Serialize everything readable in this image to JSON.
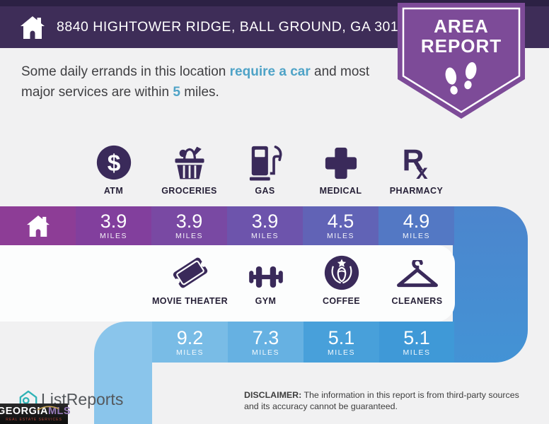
{
  "colors": {
    "header_bg": "#3e2d58",
    "header_top_strip": "#2c2144",
    "badge_purple": "#7d4b98",
    "highlight_blue": "#4fa3c7",
    "icon_purple": "#3a2a5a",
    "page_bg": "#f1f1f2",
    "panel_bg": "#fcfdfd",
    "band1_cells": [
      "#8d3d96",
      "#823f9d",
      "#7949a3",
      "#6d54ac",
      "#6163b6",
      "#5378c4"
    ],
    "connector_right_top": "#4c85cd",
    "connector_right_bottom": "#4393d5",
    "band2_cells": [
      "#8cc7ec",
      "#79bce6",
      "#66b1e2",
      "#48a0da",
      "#3f99d7"
    ],
    "connector_left": "#8ac5eb"
  },
  "header": {
    "address": "8840 HIGHTOWER RIDGE, BALL GROUND, GA 30107"
  },
  "badge": {
    "line1": "AREA",
    "line2": "REPORT"
  },
  "subtitle": {
    "segments": [
      {
        "text": "Some daily errands in this location ",
        "highlight": false
      },
      {
        "text": "require a car",
        "highlight": true
      },
      {
        "text": " and most major services are within ",
        "highlight": false
      },
      {
        "text": "5",
        "highlight": true
      },
      {
        "text": " miles.",
        "highlight": false
      }
    ]
  },
  "row1": {
    "items": [
      {
        "label": "ATM",
        "icon": "atm-dollar-icon",
        "distance": "3.9",
        "unit": "MILES"
      },
      {
        "label": "GROCERIES",
        "icon": "groceries-basket-icon",
        "distance": "3.9",
        "unit": "MILES"
      },
      {
        "label": "GAS",
        "icon": "gas-pump-icon",
        "distance": "3.9",
        "unit": "MILES"
      },
      {
        "label": "MEDICAL",
        "icon": "medical-cross-icon",
        "distance": "4.5",
        "unit": "MILES"
      },
      {
        "label": "PHARMACY",
        "icon": "pharmacy-rx-icon",
        "distance": "4.9",
        "unit": "MILES"
      }
    ]
  },
  "row2": {
    "items": [
      {
        "label": "MOVIE THEATER",
        "icon": "movie-ticket-icon",
        "distance": "9.2",
        "unit": "MILES"
      },
      {
        "label": "GYM",
        "icon": "gym-dumbbell-icon",
        "distance": "7.3",
        "unit": "MILES"
      },
      {
        "label": "COFFEE",
        "icon": "coffee-siren-icon",
        "distance": "5.1",
        "unit": "MILES"
      },
      {
        "label": "CLEANERS",
        "icon": "cleaners-hanger-icon",
        "distance": "5.1",
        "unit": "MILES"
      }
    ]
  },
  "footer": {
    "logo_text": "ListReports",
    "mls_logo": {
      "part1": "GEORGIA",
      "part2": "MLS",
      "tagline": "REAL ESTATE SERVICES"
    },
    "disclaimer_label": "DISCLAIMER:",
    "disclaimer_text": " The information in this report is from third-party sources and its accuracy cannot be guaranteed."
  }
}
